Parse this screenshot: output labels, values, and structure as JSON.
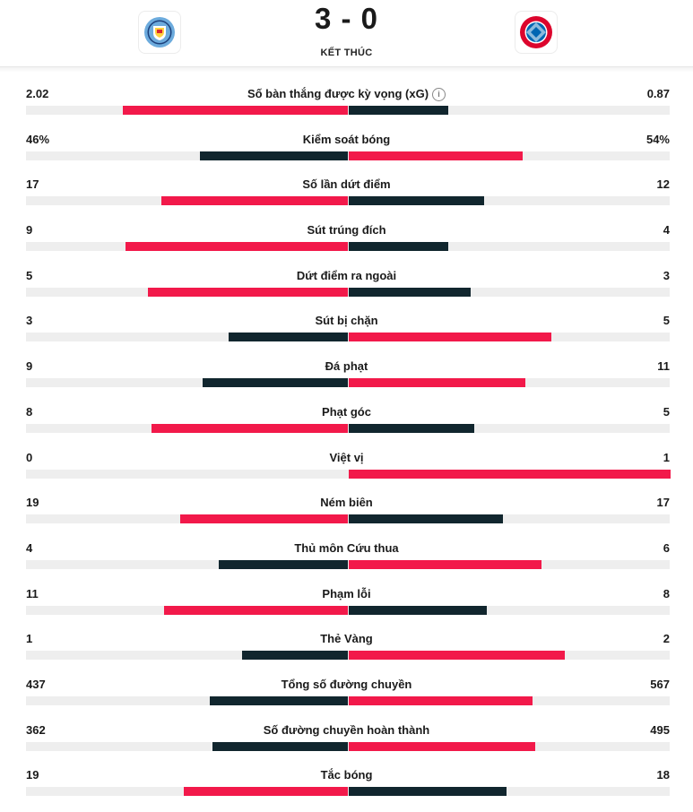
{
  "match": {
    "home_team": "Manchester City",
    "away_team": "Bayern München",
    "home_logo_icon": "manchester-city-crest-icon",
    "away_logo_icon": "bayern-munich-crest-icon",
    "score": "3 - 0",
    "status": "KẾT THÚC"
  },
  "colors": {
    "leader": "#f2194a",
    "trailer": "#11262e",
    "track": "#eeeeee"
  },
  "stats": [
    {
      "label": "Số bàn thắng được kỳ vọng (xG)",
      "home": "2.02",
      "away": "0.87",
      "home_share": 0.7,
      "away_share": 0.31,
      "info": true
    },
    {
      "label": "Kiểm soát bóng",
      "home": "46%",
      "away": "54%",
      "home_share": 0.46,
      "away_share": 0.54
    },
    {
      "label": "Số lần dứt điểm",
      "home": "17",
      "away": "12",
      "home_share": 0.58,
      "away_share": 0.42
    },
    {
      "label": "Sút trúng đích",
      "home": "9",
      "away": "4",
      "home_share": 0.69,
      "away_share": 0.31
    },
    {
      "label": "Dứt điểm ra ngoài",
      "home": "5",
      "away": "3",
      "home_share": 0.62,
      "away_share": 0.38
    },
    {
      "label": "Sút bị chặn",
      "home": "3",
      "away": "5",
      "home_share": 0.37,
      "away_share": 0.63
    },
    {
      "label": "Đá phạt",
      "home": "9",
      "away": "11",
      "home_share": 0.45,
      "away_share": 0.55
    },
    {
      "label": "Phạt góc",
      "home": "8",
      "away": "5",
      "home_share": 0.61,
      "away_share": 0.39
    },
    {
      "label": "Việt vị",
      "home": "0",
      "away": "1",
      "home_share": 0.0,
      "away_share": 1.0
    },
    {
      "label": "Ném biên",
      "home": "19",
      "away": "17",
      "home_share": 0.52,
      "away_share": 0.48
    },
    {
      "label": "Thủ môn Cứu thua",
      "home": "4",
      "away": "6",
      "home_share": 0.4,
      "away_share": 0.6
    },
    {
      "label": "Phạm lỗi",
      "home": "11",
      "away": "8",
      "home_share": 0.57,
      "away_share": 0.43
    },
    {
      "label": "Thẻ Vàng",
      "home": "1",
      "away": "2",
      "home_share": 0.33,
      "away_share": 0.67
    },
    {
      "label": "Tổng số đường chuyền",
      "home": "437",
      "away": "567",
      "home_share": 0.43,
      "away_share": 0.57
    },
    {
      "label": "Số đường chuyền hoàn thành",
      "home": "362",
      "away": "495",
      "home_share": 0.42,
      "away_share": 0.58
    },
    {
      "label": "Tắc bóng",
      "home": "19",
      "away": "18",
      "home_share": 0.51,
      "away_share": 0.49
    }
  ]
}
